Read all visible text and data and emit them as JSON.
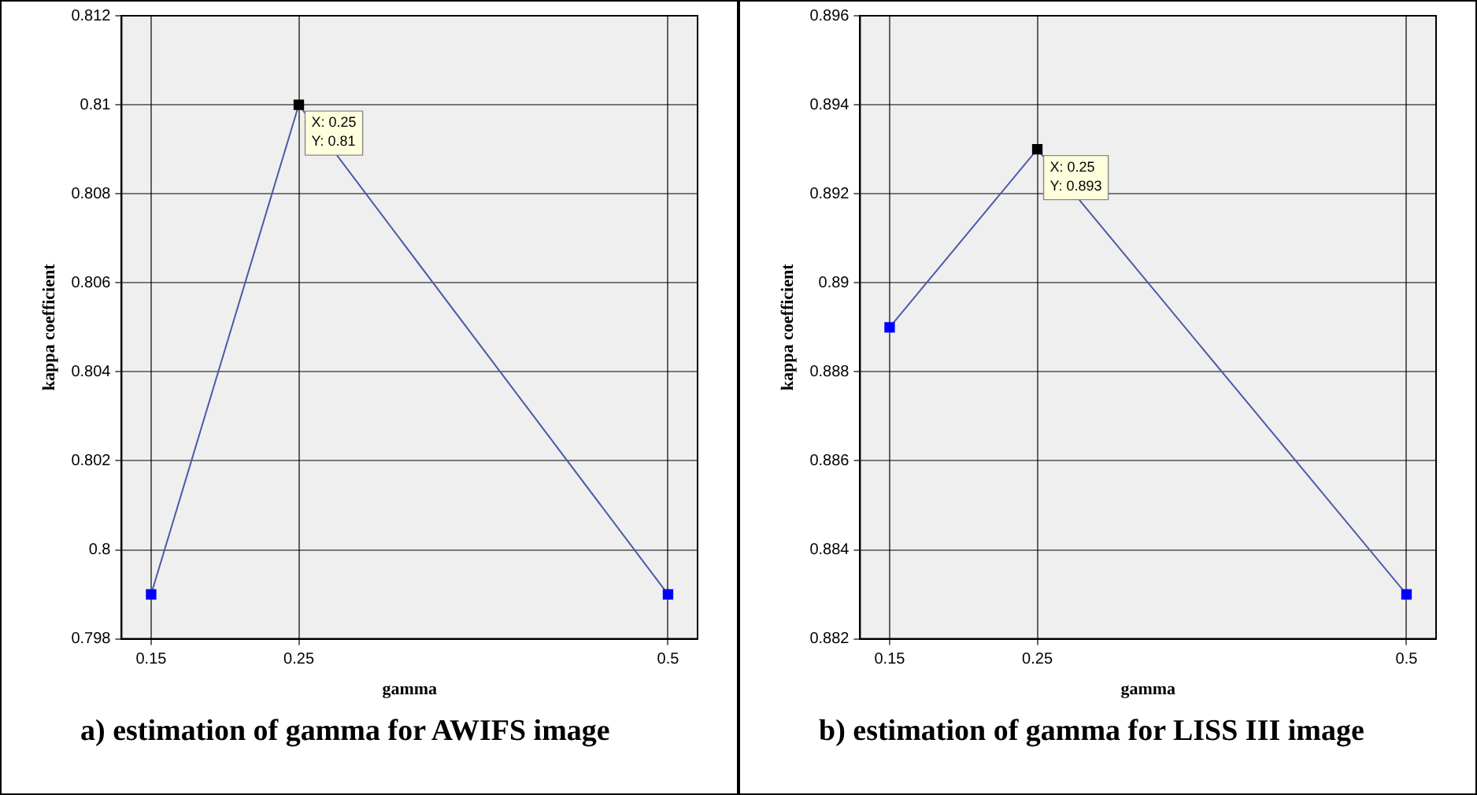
{
  "chart_data": [
    {
      "type": "line",
      "xlabel": "gamma",
      "ylabel": "kappa coefficient",
      "x": [
        0.15,
        0.25,
        0.5
      ],
      "series": [
        {
          "color": "#4a5aa8",
          "colors": [
            "#0000ff",
            "#000000",
            "#0000ff"
          ],
          "values": [
            0.799,
            0.81,
            0.799
          ]
        }
      ],
      "xlim": [
        0.13,
        0.52
      ],
      "xticks": [
        0.15,
        0.25,
        0.5
      ],
      "ylim": [
        0.798,
        0.812
      ],
      "yticks": [
        0.798,
        0.8,
        0.802,
        0.804,
        0.806,
        0.808,
        0.81,
        0.812
      ],
      "grid": true,
      "legend": false,
      "marker": "square",
      "line_style": "solid",
      "annotations": [
        {
          "text": "X: 0.25\nY: 0.81",
          "x": 0.25,
          "y": 0.81
        },
        "a)   estimation of gamma for AWIFS image"
      ]
    },
    {
      "type": "line",
      "xlabel": "gamma",
      "ylabel": "kappa coefficient",
      "x": [
        0.15,
        0.25,
        0.5
      ],
      "series": [
        {
          "color": "#4a5aa8",
          "colors": [
            "#0000ff",
            "#000000",
            "#0000ff"
          ],
          "values": [
            0.889,
            0.893,
            0.883
          ]
        }
      ],
      "xlim": [
        0.13,
        0.52
      ],
      "xticks": [
        0.15,
        0.25,
        0.5
      ],
      "ylim": [
        0.882,
        0.896
      ],
      "yticks": [
        0.882,
        0.884,
        0.886,
        0.888,
        0.89,
        0.892,
        0.894,
        0.896
      ],
      "grid": true,
      "legend": false,
      "marker": "square",
      "line_style": "solid",
      "annotations": [
        {
          "text": "X: 0.25\nY: 0.893",
          "x": 0.25,
          "y": 0.893
        },
        "b)   estimation of gamma for LISS III image"
      ]
    }
  ]
}
